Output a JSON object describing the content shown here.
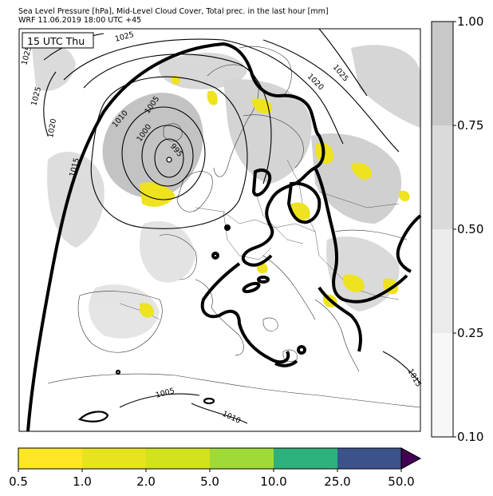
{
  "header": {
    "line1": "Sea Level Pressure [hPa], Mid-Level Cloud Cover, Total prec. in the last hour [mm]",
    "line2": "WRF 11.06.2019 18:00 UTC +45"
  },
  "map": {
    "time_label": "15 UTC Thu",
    "isobar_labels": [
      "1025",
      "1025",
      "1025",
      "1020",
      "1015",
      "1010",
      "1005",
      "1000",
      "995",
      "1020",
      "1025",
      "1005",
      "1010",
      "1015"
    ]
  },
  "cloud_colorbar": {
    "ticks": [
      "1.00",
      "0.75",
      "0.50",
      "0.25",
      "0.10"
    ],
    "colors": [
      "#c8c8c8",
      "#dadada",
      "#ebebeb",
      "#f7f7f7"
    ]
  },
  "precip_colorbar": {
    "ticks": [
      "0.5",
      "1.0",
      "2.0",
      "5.0",
      "10.0",
      "25.0",
      "50.0"
    ],
    "colors": [
      "#fde725",
      "#e8e31f",
      "#d2e21b",
      "#a0da39",
      "#2db27d",
      "#3b528b",
      "#440154"
    ]
  }
}
